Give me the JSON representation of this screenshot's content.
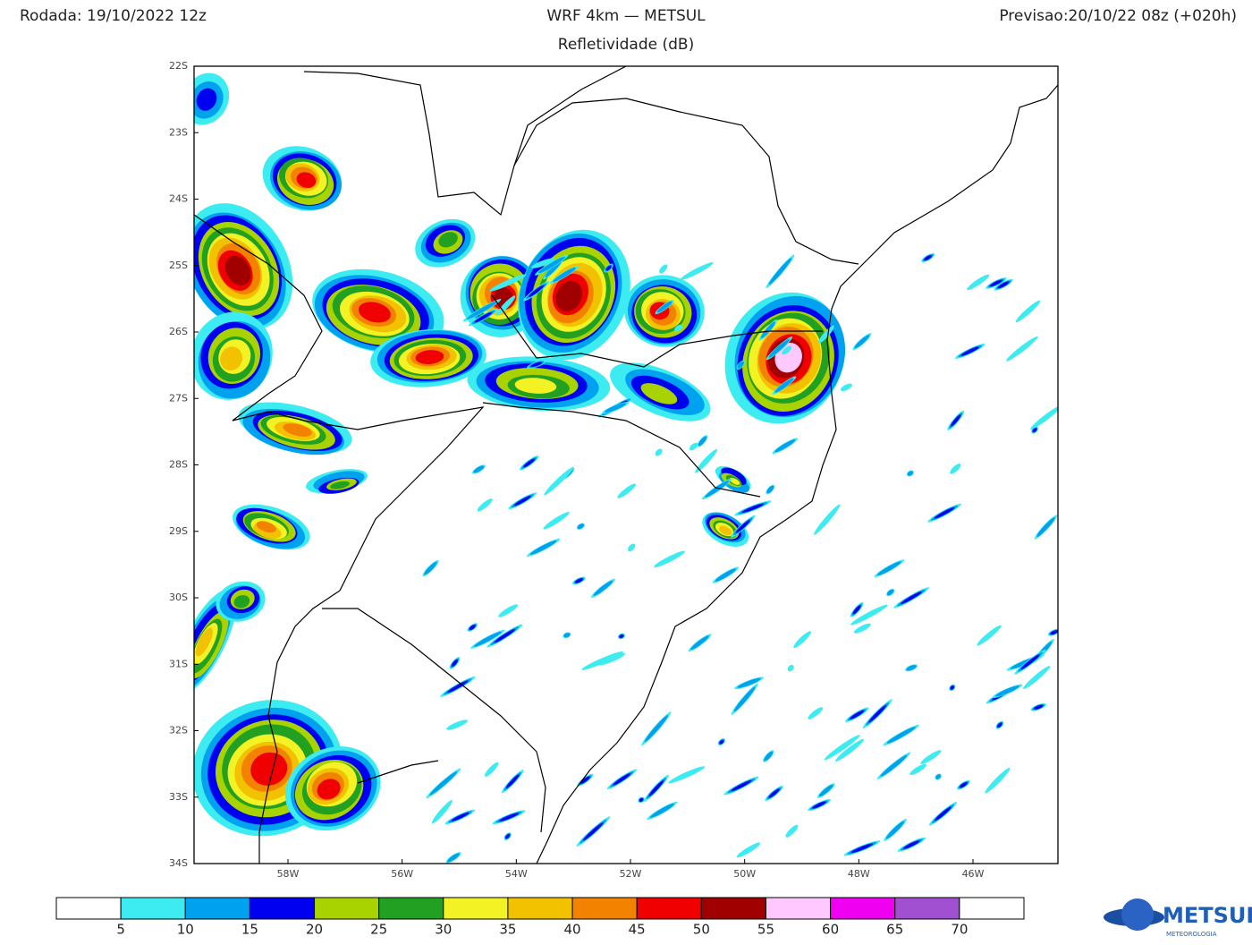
{
  "header": {
    "run": "Rodada: 19/10/2022 12z",
    "title": "WRF 4km — METSUL",
    "subtitle": "Refletividade (dB)",
    "forecast": "Previsao:20/10/22 08z (+020h)"
  },
  "map": {
    "lat_labels": [
      "22S",
      "23S",
      "24S",
      "25S",
      "26S",
      "27S",
      "28S",
      "29S",
      "30S",
      "31S",
      "32S",
      "33S",
      "34S"
    ],
    "lon_labels": [
      "58W",
      "56W",
      "54W",
      "52W",
      "50W",
      "48W",
      "46W"
    ]
  },
  "colorbar": {
    "colors": [
      "#ffffff",
      "#3cecf0",
      "#00a2f0",
      "#0000f0",
      "#a8d200",
      "#22a022",
      "#f2f224",
      "#f2c200",
      "#f28200",
      "#f00000",
      "#a00000",
      "#ffc8ff",
      "#f000f0",
      "#a050d0",
      "#ffffff"
    ],
    "labels": [
      "5",
      "10",
      "15",
      "20",
      "25",
      "30",
      "35",
      "40",
      "45",
      "50",
      "55",
      "60",
      "65",
      "70"
    ]
  },
  "logo": {
    "name": "METSUL",
    "tagline": "METEOROLOGIA"
  }
}
